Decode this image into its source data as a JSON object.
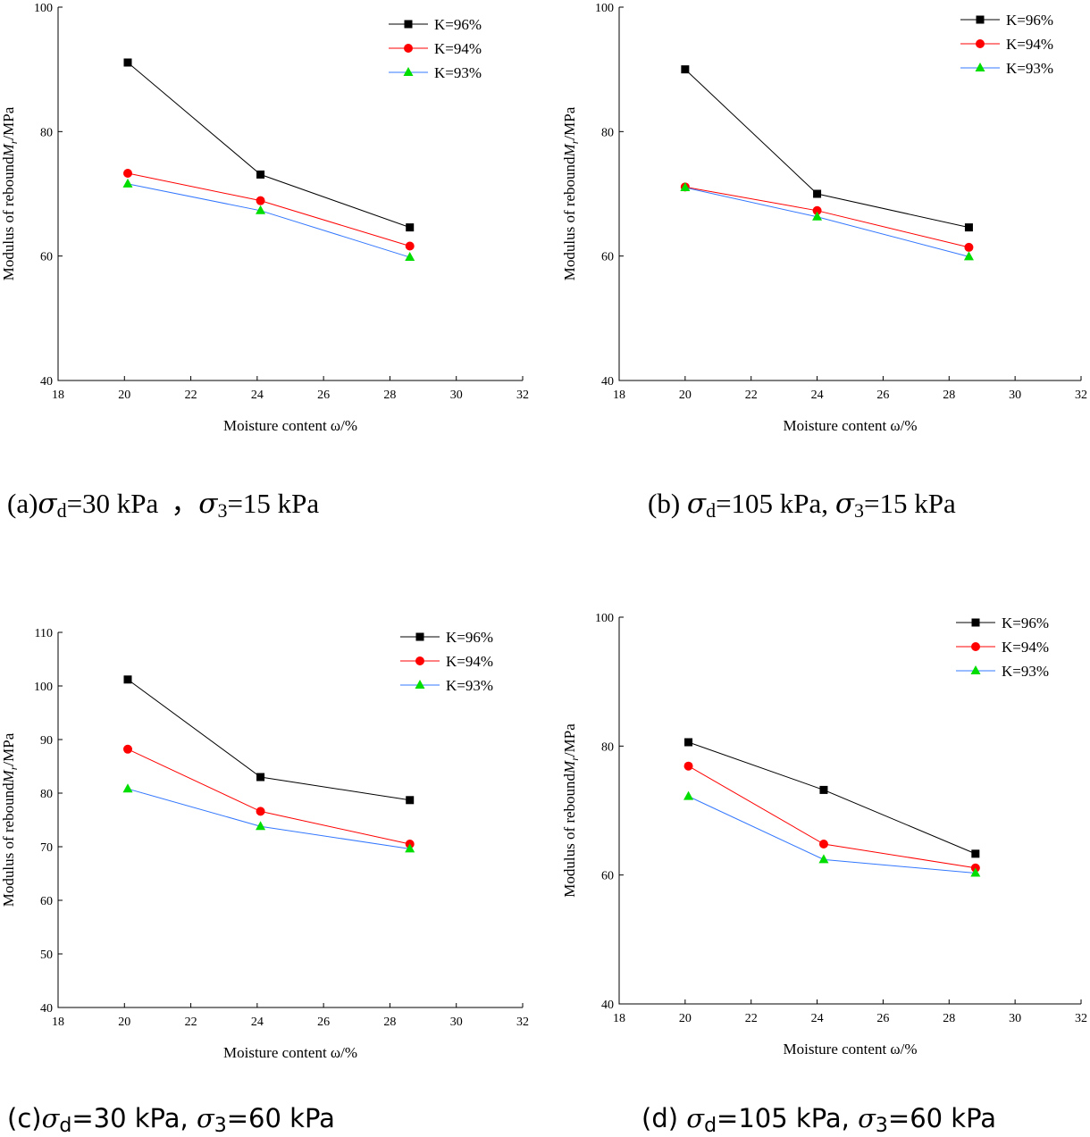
{
  "colors": {
    "K96": "#000000",
    "K94": "#ff0000",
    "K93": "#00dd00",
    "K93_line": "#3377ff"
  },
  "chart_data": [
    {
      "id": "a",
      "type": "line",
      "caption": {
        "prefix": "(a)",
        "sigma": "σ",
        "sub_d": "d",
        "mid": "=30 kPa  ，",
        "sub_3": "3",
        "tail": "=15 kPa"
      },
      "xlabel": "Moisture content ω/%",
      "ylabel_prefix": "Modulus of rebound",
      "ylabel_symbol": "M",
      "ylabel_sub": "r",
      "ylabel_suffix": "/MPa",
      "xlim": [
        18,
        32
      ],
      "ylim": [
        40,
        100
      ],
      "xticks": [
        "18",
        "20",
        "22",
        "24",
        "26",
        "28",
        "30",
        "32"
      ],
      "yticks": [
        "40",
        "60",
        "80",
        "100"
      ],
      "legend_position": "top-right",
      "series": [
        {
          "name": "K=96%",
          "marker": "square",
          "x": [
            20.1,
            24.1,
            28.6
          ],
          "values": [
            91.1,
            73.1,
            64.6
          ]
        },
        {
          "name": "K=94%",
          "marker": "circle",
          "x": [
            20.1,
            24.1,
            28.6
          ],
          "values": [
            73.3,
            68.9,
            61.6
          ]
        },
        {
          "name": "K=93%",
          "marker": "triangle",
          "x": [
            20.1,
            24.1,
            28.6
          ],
          "values": [
            71.6,
            67.3,
            59.8
          ]
        }
      ]
    },
    {
      "id": "b",
      "type": "line",
      "caption": {
        "prefix": "(b) ",
        "sigma": "σ",
        "sub_d": "d",
        "mid": "=105 kPa, ",
        "sub_3": "3",
        "tail": "=15 kPa"
      },
      "xlabel": "Moisture content ω/%",
      "ylabel_prefix": "Modulus of rebound",
      "ylabel_symbol": "M",
      "ylabel_sub": "r",
      "ylabel_suffix": "/MPa",
      "xlim": [
        18,
        32
      ],
      "ylim": [
        40,
        100
      ],
      "xticks": [
        "18",
        "20",
        "22",
        "24",
        "26",
        "28",
        "30",
        "32"
      ],
      "yticks": [
        "40",
        "60",
        "80",
        "100"
      ],
      "legend_position": "top-right",
      "series": [
        {
          "name": "K=96%",
          "marker": "square",
          "x": [
            20.0,
            24.0,
            28.6
          ],
          "values": [
            90.0,
            70.0,
            64.6
          ]
        },
        {
          "name": "K=94%",
          "marker": "circle",
          "x": [
            20.0,
            24.0,
            28.6
          ],
          "values": [
            71.1,
            67.3,
            61.4
          ]
        },
        {
          "name": "K=93%",
          "marker": "triangle",
          "x": [
            20.0,
            24.0,
            28.6
          ],
          "values": [
            71.0,
            66.3,
            59.9
          ]
        }
      ]
    },
    {
      "id": "c",
      "type": "line",
      "caption": {
        "prefix": "(c)",
        "sigma": "σ",
        "sub_d": "d",
        "mid": "=30 kPa, ",
        "sub_3": "3",
        "tail": "=60 kPa"
      },
      "xlabel": "Moisture content ω/%",
      "ylabel_prefix": "Modulus of rebound",
      "ylabel_symbol": "M",
      "ylabel_sub": "r",
      "ylabel_suffix": "/MPa",
      "xlim": [
        18,
        32
      ],
      "ylim": [
        40,
        110
      ],
      "xticks": [
        "18",
        "20",
        "22",
        "24",
        "26",
        "28",
        "30",
        "32"
      ],
      "yticks": [
        "40",
        "50",
        "60",
        "70",
        "80",
        "90",
        "100",
        "110"
      ],
      "legend_position": "top-right",
      "series": [
        {
          "name": "K=96%",
          "marker": "square",
          "x": [
            20.1,
            24.1,
            28.6
          ],
          "values": [
            101.2,
            83.0,
            78.7
          ]
        },
        {
          "name": "K=94%",
          "marker": "circle",
          "x": [
            20.1,
            24.1,
            28.6
          ],
          "values": [
            88.2,
            76.6,
            70.5
          ]
        },
        {
          "name": "K=93%",
          "marker": "triangle",
          "x": [
            20.1,
            24.1,
            28.6
          ],
          "values": [
            80.8,
            73.8,
            69.6
          ]
        }
      ]
    },
    {
      "id": "d",
      "type": "line",
      "caption": {
        "prefix": "(d) ",
        "sigma": "σ",
        "sub_d": "d",
        "mid": "=105 kPa, ",
        "sub_3": "3",
        "tail": "=60 kPa"
      },
      "xlabel": "Moisture content ω/%",
      "ylabel_prefix": "Modulus of rebound",
      "ylabel_symbol": "M",
      "ylabel_sub": "r",
      "ylabel_suffix": "/MPa",
      "xlim": [
        18,
        32
      ],
      "ylim": [
        40,
        100
      ],
      "xticks": [
        "18",
        "20",
        "22",
        "24",
        "26",
        "28",
        "30",
        "32"
      ],
      "yticks": [
        "40",
        "60",
        "80",
        "100"
      ],
      "legend_position": "top-right",
      "series": [
        {
          "name": "K=96%",
          "marker": "square",
          "x": [
            20.1,
            24.2,
            28.8
          ],
          "values": [
            80.6,
            73.2,
            63.3
          ]
        },
        {
          "name": "K=94%",
          "marker": "circle",
          "x": [
            20.1,
            24.2,
            28.8
          ],
          "values": [
            76.9,
            64.8,
            61.1
          ]
        },
        {
          "name": "K=93%",
          "marker": "triangle",
          "x": [
            20.1,
            24.2,
            28.8
          ],
          "values": [
            72.2,
            62.4,
            60.3
          ]
        }
      ]
    }
  ]
}
